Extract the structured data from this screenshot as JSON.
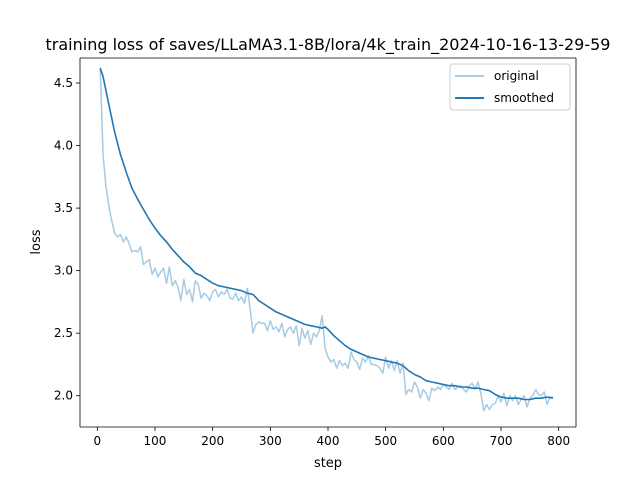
{
  "chart_data": {
    "type": "line",
    "title": "training loss of saves/LLaMA3.1-8B/lora/4k_train_2024-10-16-13-29-59",
    "xlabel": "step",
    "ylabel": "loss",
    "xlim": [
      -30,
      830
    ],
    "ylim": [
      1.75,
      4.7
    ],
    "xticks": [
      0,
      100,
      200,
      300,
      400,
      500,
      600,
      700,
      800
    ],
    "yticks": [
      2.0,
      2.5,
      3.0,
      3.5,
      4.0,
      4.5
    ],
    "ytick_labels": [
      "2.0",
      "2.5",
      "3.0",
      "3.5",
      "4.0",
      "4.5"
    ],
    "legend_position": "top-right",
    "grid": false,
    "series": [
      {
        "name": "original",
        "color": "#a6cbe3",
        "x": [
          5,
          10,
          15,
          20,
          25,
          30,
          35,
          40,
          45,
          50,
          55,
          60,
          65,
          70,
          75,
          80,
          85,
          90,
          95,
          100,
          105,
          110,
          115,
          120,
          125,
          130,
          135,
          140,
          145,
          150,
          155,
          160,
          165,
          170,
          175,
          180,
          185,
          190,
          195,
          200,
          205,
          210,
          215,
          220,
          225,
          230,
          235,
          240,
          245,
          250,
          255,
          260,
          265,
          270,
          275,
          280,
          285,
          290,
          295,
          300,
          305,
          310,
          315,
          320,
          325,
          330,
          335,
          340,
          345,
          350,
          355,
          360,
          365,
          370,
          375,
          380,
          385,
          390,
          395,
          400,
          405,
          410,
          415,
          420,
          425,
          430,
          435,
          440,
          445,
          450,
          455,
          460,
          465,
          470,
          475,
          480,
          485,
          490,
          495,
          500,
          505,
          510,
          515,
          520,
          525,
          530,
          535,
          540,
          545,
          550,
          555,
          560,
          565,
          570,
          575,
          580,
          585,
          590,
          595,
          600,
          605,
          610,
          615,
          620,
          625,
          630,
          635,
          640,
          645,
          650,
          655,
          660,
          665,
          670,
          675,
          680,
          685,
          690,
          695,
          700,
          705,
          710,
          715,
          720,
          725,
          730,
          735,
          740,
          745,
          750,
          755,
          760,
          765,
          770,
          775,
          780,
          785,
          790
        ],
        "values": [
          4.62,
          3.92,
          3.67,
          3.52,
          3.4,
          3.3,
          3.27,
          3.29,
          3.23,
          3.27,
          3.22,
          3.15,
          3.16,
          3.15,
          3.19,
          3.05,
          3.07,
          3.09,
          2.97,
          3.02,
          2.95,
          2.99,
          3.02,
          2.9,
          3.03,
          2.88,
          2.92,
          2.87,
          2.76,
          2.93,
          2.81,
          2.85,
          2.75,
          2.92,
          2.89,
          2.78,
          2.82,
          2.8,
          2.76,
          2.83,
          2.85,
          2.79,
          2.83,
          2.81,
          2.85,
          2.78,
          2.77,
          2.82,
          2.76,
          2.79,
          2.74,
          2.86,
          2.7,
          2.5,
          2.57,
          2.59,
          2.58,
          2.58,
          2.52,
          2.6,
          2.53,
          2.55,
          2.51,
          2.58,
          2.47,
          2.53,
          2.55,
          2.5,
          2.56,
          2.4,
          2.54,
          2.46,
          2.52,
          2.41,
          2.5,
          2.47,
          2.52,
          2.64,
          2.38,
          2.31,
          2.27,
          2.29,
          2.22,
          2.28,
          2.24,
          2.26,
          2.22,
          2.35,
          2.29,
          2.27,
          2.21,
          2.3,
          2.27,
          2.32,
          2.25,
          2.25,
          2.24,
          2.22,
          2.18,
          2.31,
          2.22,
          2.28,
          2.2,
          2.28,
          2.18,
          2.26,
          2.01,
          2.05,
          2.03,
          2.11,
          2.07,
          1.98,
          2.05,
          2.02,
          1.96,
          2.06,
          2.04,
          2.07,
          2.05,
          2.09,
          2.07,
          2.05,
          2.1,
          2.05,
          2.07,
          2.08,
          2.05,
          2.03,
          2.08,
          2.1,
          2.05,
          2.11,
          2.02,
          1.88,
          1.93,
          1.89,
          1.93,
          1.94,
          2.0,
          1.95,
          2.02,
          1.92,
          2.0,
          1.96,
          2.0,
          1.93,
          1.97,
          2.0,
          1.91,
          1.98,
          2.0,
          2.05,
          2.01,
          2.0,
          2.03,
          1.93,
          1.99,
          1.99
        ]
      },
      {
        "name": "smoothed",
        "color": "#1f77b4",
        "x": [
          5,
          10,
          20,
          30,
          40,
          50,
          60,
          70,
          80,
          90,
          100,
          110,
          120,
          130,
          140,
          150,
          160,
          170,
          180,
          190,
          200,
          210,
          220,
          230,
          240,
          250,
          260,
          270,
          280,
          290,
          300,
          310,
          320,
          330,
          340,
          350,
          360,
          370,
          380,
          390,
          395,
          400,
          410,
          420,
          430,
          440,
          450,
          460,
          470,
          480,
          490,
          500,
          510,
          520,
          530,
          540,
          550,
          560,
          570,
          580,
          590,
          600,
          610,
          620,
          630,
          640,
          650,
          660,
          670,
          680,
          690,
          700,
          710,
          720,
          730,
          740,
          750,
          760,
          770,
          780,
          790
        ],
        "values": [
          4.62,
          4.55,
          4.33,
          4.11,
          3.93,
          3.79,
          3.66,
          3.57,
          3.49,
          3.41,
          3.34,
          3.28,
          3.23,
          3.17,
          3.12,
          3.07,
          3.03,
          2.98,
          2.96,
          2.93,
          2.9,
          2.88,
          2.87,
          2.86,
          2.85,
          2.84,
          2.82,
          2.81,
          2.76,
          2.73,
          2.7,
          2.67,
          2.65,
          2.63,
          2.61,
          2.59,
          2.57,
          2.56,
          2.55,
          2.54,
          2.55,
          2.53,
          2.48,
          2.44,
          2.4,
          2.37,
          2.35,
          2.33,
          2.31,
          2.3,
          2.29,
          2.28,
          2.27,
          2.26,
          2.24,
          2.2,
          2.17,
          2.15,
          2.12,
          2.11,
          2.1,
          2.09,
          2.08,
          2.08,
          2.07,
          2.07,
          2.06,
          2.06,
          2.05,
          2.04,
          2.01,
          1.99,
          1.98,
          1.98,
          1.98,
          1.97,
          1.97,
          1.98,
          1.98,
          1.99,
          1.98
        ]
      }
    ]
  }
}
